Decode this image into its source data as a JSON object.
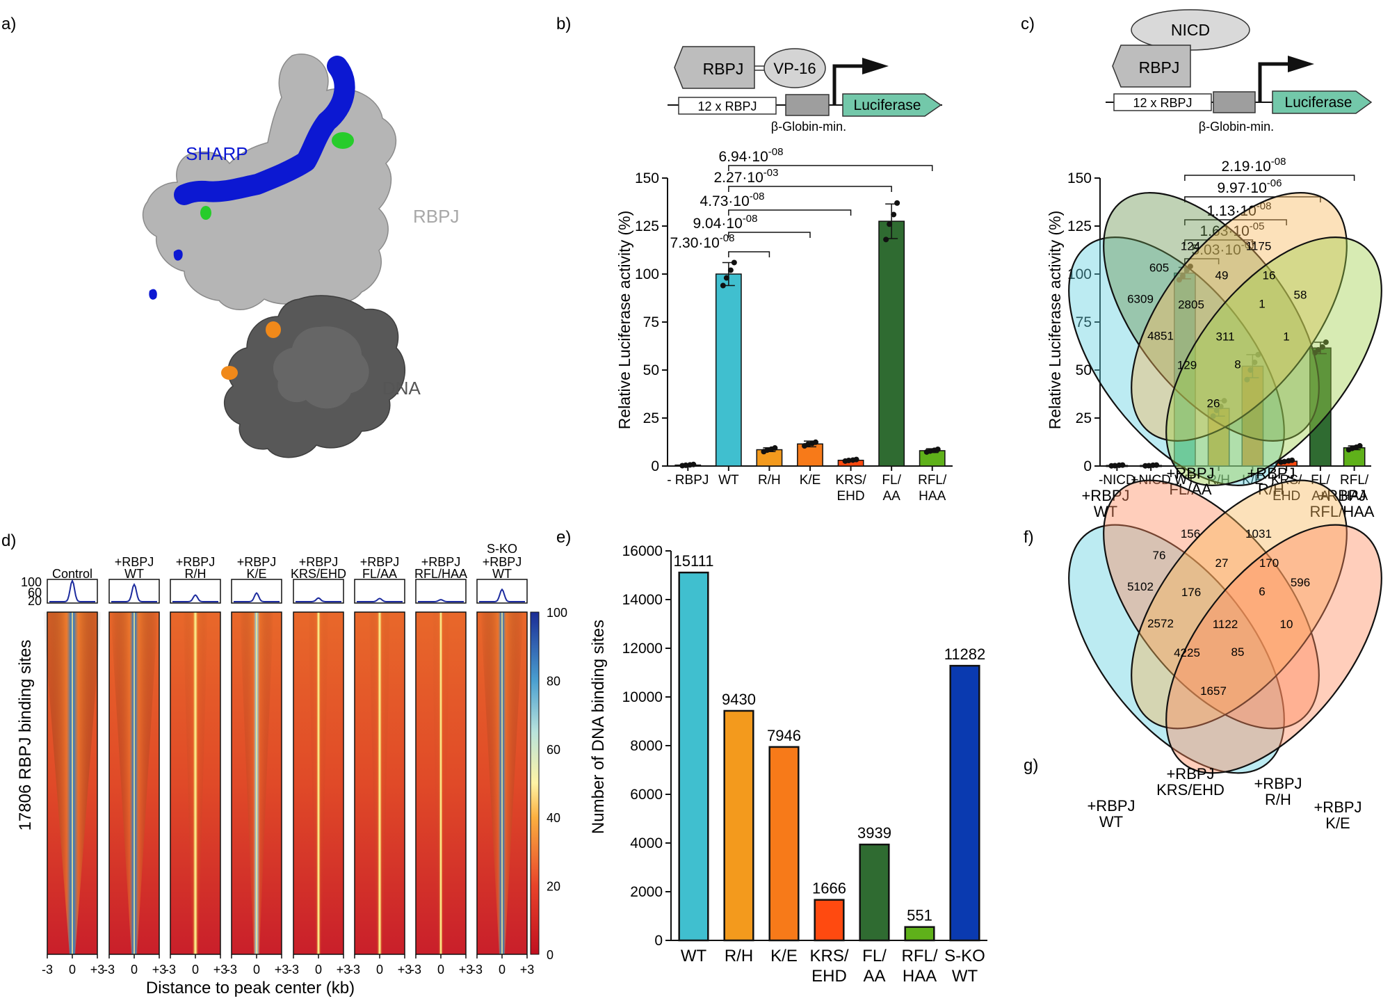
{
  "panel_labels": {
    "a": "a)",
    "b": "b)",
    "c": "c)",
    "d": "d)",
    "e": "e)",
    "f": "f)",
    "g": "g)"
  },
  "colors": {
    "wt": "#40bfcf",
    "rh": "#f39a1d",
    "ke": "#f77a19",
    "krs": "#ff4a10",
    "flaa": "#2f6b31",
    "rflhaa": "#5fb11a",
    "sko": "#0a3ab0",
    "black": "#111111",
    "rbpj_protein": "#b3b3b3",
    "dna": "#555555",
    "sharp": "#0c18d2",
    "luciferase": "#73c8aa"
  },
  "structure": {
    "sharp_label": "SHARP",
    "rbpj_label": "RBPJ",
    "dna_label": "DNA"
  },
  "panel_b": {
    "diagram": {
      "rbpj": "RBPJ",
      "vp16": "VP-16",
      "repeat": "12 x RBPJ",
      "reporter": "Luciferase",
      "promoter": "β-Globin-min."
    },
    "pvalues": [
      {
        "mantissa": "7.30",
        "exponent": "-08"
      },
      {
        "mantissa": "9.04",
        "exponent": "-08"
      },
      {
        "mantissa": "4.73",
        "exponent": "-08"
      },
      {
        "mantissa": "2.27",
        "exponent": "-03"
      },
      {
        "mantissa": "6.94",
        "exponent": "-08"
      }
    ]
  },
  "panel_c": {
    "diagram": {
      "nicd": "NICD",
      "rbpj": "RBPJ",
      "repeat": "12 x RBPJ",
      "reporter": "Luciferase",
      "promoter": "β-Globin-min."
    },
    "pvalues": [
      {
        "mantissa": "5.03",
        "exponent": "-07"
      },
      {
        "mantissa": "1.63",
        "exponent": "-05"
      },
      {
        "mantissa": "1.13",
        "exponent": "-08"
      },
      {
        "mantissa": "9.97",
        "exponent": "-06"
      },
      {
        "mantissa": "2.19",
        "exponent": "-08"
      }
    ]
  },
  "panel_d": {
    "columns": [
      {
        "line1": "",
        "line2": "",
        "line3": "Control"
      },
      {
        "line1": "",
        "line2": "+RBPJ",
        "line3": "WT"
      },
      {
        "line1": "",
        "line2": "+RBPJ",
        "line3": "R/H"
      },
      {
        "line1": "",
        "line2": "+RBPJ",
        "line3": "K/E"
      },
      {
        "line1": "",
        "line2": "+RBPJ",
        "line3": "KRS/EHD"
      },
      {
        "line1": "",
        "line2": "+RBPJ",
        "line3": "FL/AA"
      },
      {
        "line1": "",
        "line2": "+RBPJ",
        "line3": "RFL/HAA"
      },
      {
        "line1": "S-KO",
        "line2": "+RBPJ",
        "line3": "WT"
      }
    ],
    "profile_peaks": [
      100,
      85,
      42,
      50,
      30,
      28,
      23,
      65
    ],
    "heatmap_intensity": [
      1.0,
      0.75,
      0.25,
      0.45,
      0.15,
      0.18,
      0.1,
      0.65
    ],
    "profile_yticks": [
      "100",
      "60",
      "20"
    ],
    "ylabel": "17806 RBPJ binding sites",
    "xticks": [
      "-3",
      "0",
      "+3"
    ],
    "xlabel": "Distance to peak center (kb)",
    "colorbar_ticks": [
      "100",
      "80",
      "60",
      "40",
      "20",
      "0"
    ]
  },
  "venn_f": {
    "labels": [
      {
        "line1": "+RBPJ",
        "line2": "WT"
      },
      {
        "line1": "+RBPJ",
        "line2": "FL/AA"
      },
      {
        "line1": "+RBPJ",
        "line2": "R/H"
      },
      {
        "line1": "+RBPJ",
        "line2": "RFL/HAA"
      }
    ],
    "counts": [
      "6309",
      "124",
      "1175",
      "58",
      "605",
      "49",
      "16",
      "2805",
      "1",
      "4851",
      "311",
      "1",
      "129",
      "8",
      "26"
    ]
  },
  "venn_g": {
    "labels": [
      {
        "line1": "+RBPJ",
        "line2": "WT"
      },
      {
        "line1": "+RBPJ",
        "line2": "KRS/EHD"
      },
      {
        "line1": "+RBPJ",
        "line2": "R/H"
      },
      {
        "line1": "+RBPJ",
        "line2": "K/E"
      }
    ],
    "counts": [
      "5102",
      "156",
      "1031",
      "596",
      "76",
      "27",
      "170",
      "176",
      "6",
      "2572",
      "1122",
      "10",
      "4225",
      "85",
      "1657"
    ]
  },
  "chart_data": [
    {
      "id": "b",
      "type": "bar",
      "categories": [
        "- RBPJ",
        "WT",
        "R/H",
        "K/E",
        "KRS/EHD",
        "FL/AA",
        "RFL/HAA"
      ],
      "tick_labels": [
        [
          "- RBPJ",
          ""
        ],
        [
          "WT",
          ""
        ],
        [
          "R/H",
          ""
        ],
        [
          "K/E",
          ""
        ],
        [
          "KRS/",
          "EHD"
        ],
        [
          "FL/",
          "AA"
        ],
        [
          "RFL/",
          "HAA"
        ]
      ],
      "values": [
        0.5,
        100,
        8.5,
        11.5,
        3,
        127.5,
        8
      ],
      "errors": [
        0.3,
        6,
        1,
        1.5,
        0.5,
        9,
        1
      ],
      "points": [
        [
          0.2,
          0.4,
          0.6,
          0.8
        ],
        [
          94,
          98,
          102,
          106
        ],
        [
          7.5,
          8.3,
          8.8,
          9.4
        ],
        [
          10.5,
          11.3,
          11.8,
          12.4
        ],
        [
          2.6,
          2.9,
          3.1,
          3.4
        ],
        [
          118,
          126,
          131,
          137
        ],
        [
          7.3,
          7.8,
          8.2,
          8.7
        ]
      ],
      "colors": [
        "#111111",
        "#40bfcf",
        "#f39a1d",
        "#f77a19",
        "#ff4a10",
        "#2f6b31",
        "#5fb11a"
      ],
      "comparisons": [
        [
          1,
          2
        ],
        [
          1,
          3
        ],
        [
          1,
          4
        ],
        [
          1,
          5
        ],
        [
          1,
          6
        ]
      ],
      "ylabel": "Relative Luciferase activity (%)",
      "ylim": [
        0,
        150
      ],
      "yticks": [
        0,
        25,
        50,
        75,
        100,
        125,
        150
      ]
    },
    {
      "id": "c",
      "type": "bar",
      "categories": [
        "-NICD",
        "+NICD",
        "WT",
        "R/H",
        "K/E",
        "KRS/EHD",
        "FL/AA",
        "RFL/HAA"
      ],
      "tick_labels": [
        [
          "-NICD",
          ""
        ],
        [
          "+NICD",
          ""
        ],
        [
          "WT",
          ""
        ],
        [
          "R/H",
          ""
        ],
        [
          "K/E",
          ""
        ],
        [
          "KRS/",
          "EHD"
        ],
        [
          "FL/",
          "AA"
        ],
        [
          "RFL/",
          "HAA"
        ]
      ],
      "values": [
        0.3,
        0.3,
        100.5,
        30,
        52,
        2.5,
        61.5,
        9.5
      ],
      "errors": [
        0.2,
        0.2,
        3,
        4,
        6,
        0.5,
        3,
        1
      ],
      "points": [
        [
          0.1,
          0.2,
          0.4,
          0.5
        ],
        [
          0.1,
          0.2,
          0.4,
          0.5
        ],
        [
          97,
          99,
          102,
          104
        ],
        [
          26,
          29,
          31,
          34
        ],
        [
          45,
          50,
          54,
          58
        ],
        [
          2,
          2.3,
          2.7,
          3
        ],
        [
          59,
          60.5,
          62,
          64.5
        ],
        [
          8.5,
          9.2,
          9.8,
          10.5
        ]
      ],
      "colors": [
        "#111111",
        "#111111",
        "#40bfcf",
        "#f39a1d",
        "#f77a19",
        "#ff4a10",
        "#2f6b31",
        "#5fb11a"
      ],
      "comparisons": [
        [
          2,
          3
        ],
        [
          2,
          4
        ],
        [
          2,
          5
        ],
        [
          2,
          6
        ],
        [
          2,
          7
        ]
      ],
      "ylabel": "Relative Luciferase activity (%)",
      "ylim": [
        0,
        150
      ],
      "yticks": [
        0,
        25,
        50,
        75,
        100,
        125,
        150
      ]
    },
    {
      "id": "e",
      "type": "bar",
      "categories": [
        "WT",
        "R/H",
        "K/E",
        "KRS/EHD",
        "FL/AA",
        "RFL/HAA",
        "S-KO WT"
      ],
      "tick_labels": [
        [
          "WT",
          ""
        ],
        [
          "R/H",
          ""
        ],
        [
          "K/E",
          ""
        ],
        [
          "KRS/",
          "EHD"
        ],
        [
          "FL/",
          "AA"
        ],
        [
          "RFL/",
          "HAA"
        ],
        [
          "S-KO",
          "WT"
        ]
      ],
      "values": [
        15111,
        9430,
        7946,
        1666,
        3939,
        551,
        11282
      ],
      "value_labels": [
        "15111",
        "9430",
        "7946",
        "1666",
        "3939",
        "551",
        "11282"
      ],
      "colors": [
        "#40bfcf",
        "#f39a1d",
        "#f77a19",
        "#ff4a10",
        "#2f6b31",
        "#5fb11a",
        "#0a3ab0"
      ],
      "ylabel": "Number of DNA binding sites",
      "ylim": [
        0,
        16000
      ],
      "yticks": [
        0,
        2000,
        4000,
        6000,
        8000,
        10000,
        12000,
        14000,
        16000
      ]
    }
  ]
}
